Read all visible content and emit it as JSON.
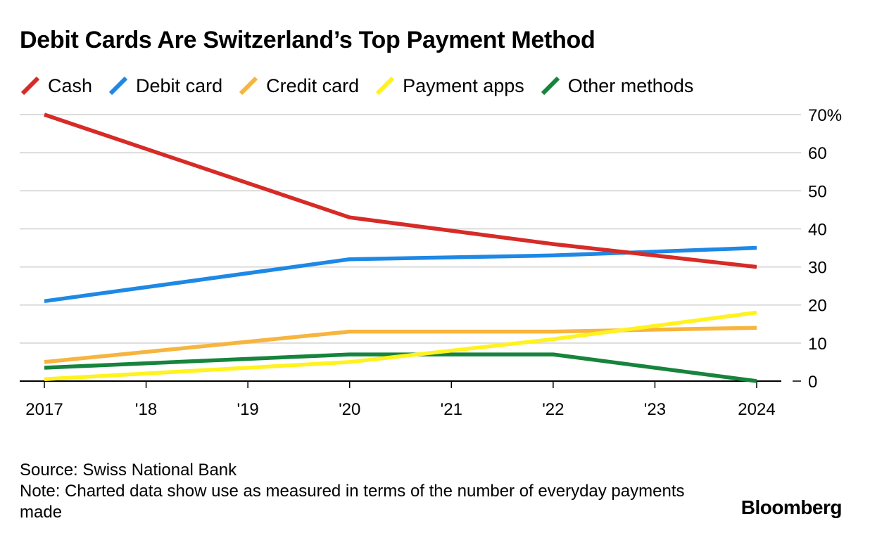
{
  "title": "Debit Cards Are Switzerland’s Top Payment Method",
  "source": "Source: Swiss National Bank",
  "note": "Note: Charted data show use as measured in terms of the number of everyday payments made",
  "brand": "Bloomberg",
  "chart_data": {
    "type": "line",
    "title": "Debit Cards Are Switzerland’s Top Payment Method",
    "x": [
      2017,
      2020,
      2022,
      2024
    ],
    "x_ticks": [
      2017,
      2018,
      2019,
      2020,
      2021,
      2022,
      2023,
      2024
    ],
    "x_tick_labels": [
      "2017",
      "'18",
      "'19",
      "'20",
      "'21",
      "'22",
      "'23",
      "2024"
    ],
    "xlim": [
      2017,
      2024
    ],
    "ylim": [
      0,
      70
    ],
    "y_ticks": [
      0,
      10,
      20,
      30,
      40,
      50,
      60,
      70
    ],
    "y_tick_labels": [
      "0",
      "10",
      "20",
      "30",
      "40",
      "50",
      "60",
      "70%"
    ],
    "ylabel": "",
    "xlabel": "",
    "grid": true,
    "legend_position": "top-left",
    "series": [
      {
        "name": "Cash",
        "color": "#d62b27",
        "values": [
          70,
          43,
          36,
          30
        ]
      },
      {
        "name": "Debit card",
        "color": "#1e88e5",
        "values": [
          21,
          32,
          33,
          35
        ]
      },
      {
        "name": "Credit card",
        "color": "#f6b53e",
        "values": [
          5,
          13,
          13,
          14
        ]
      },
      {
        "name": "Payment apps",
        "color": "#fff21f",
        "values": [
          0.5,
          5,
          11,
          18
        ]
      },
      {
        "name": "Other methods",
        "color": "#16843c",
        "values": [
          3.5,
          7,
          7,
          0
        ]
      }
    ]
  }
}
